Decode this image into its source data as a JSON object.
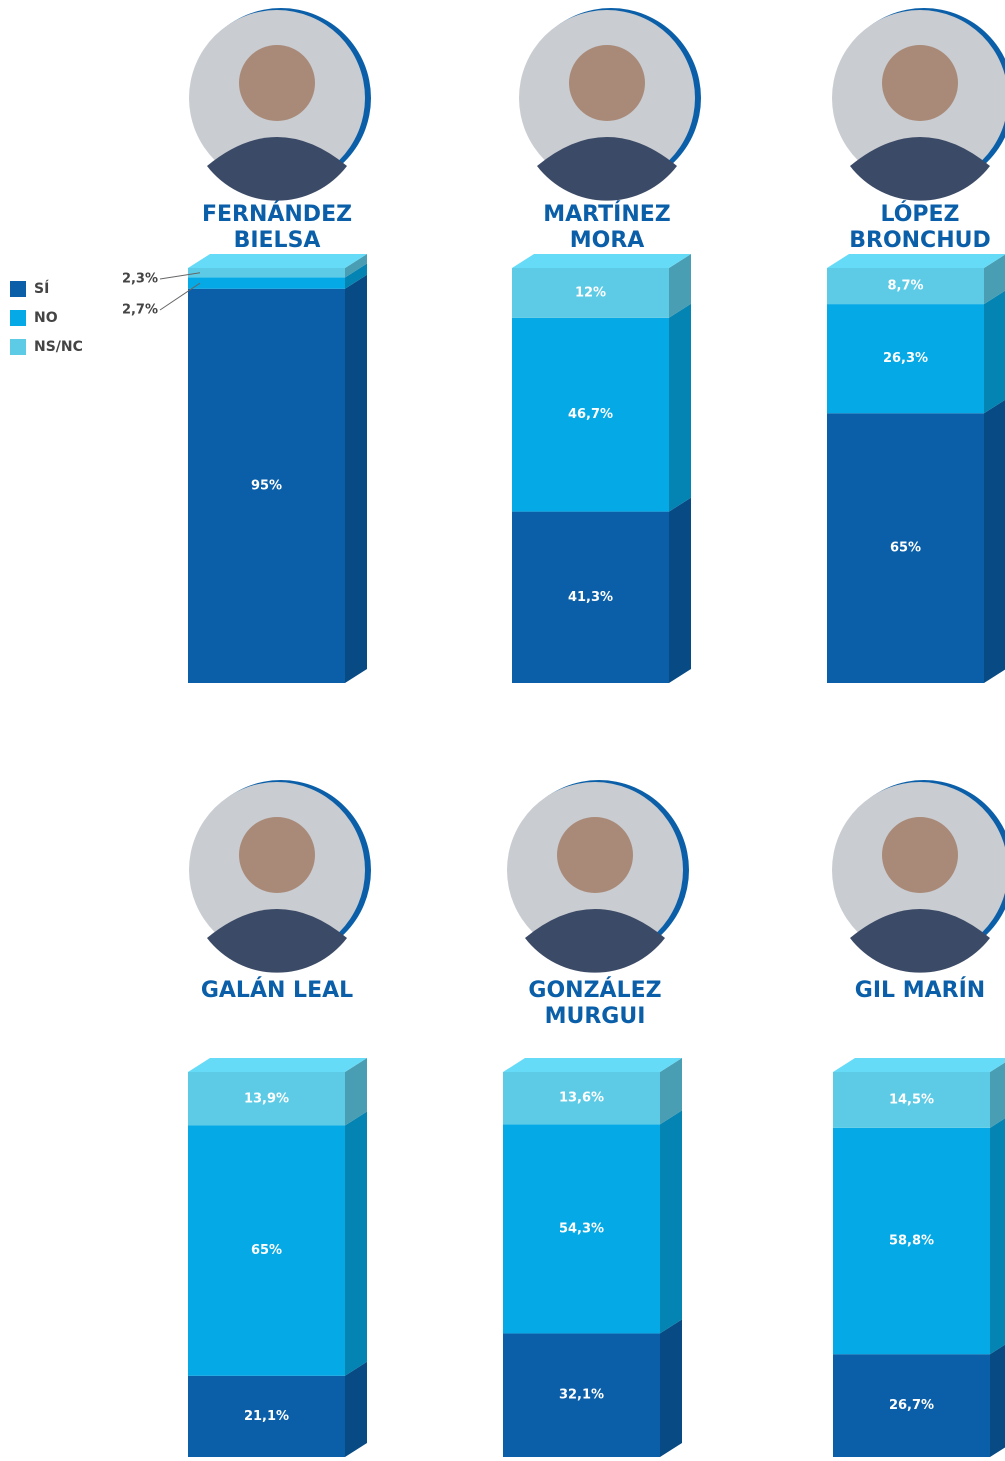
{
  "chart_data": {
    "type": "stacked-bar-3d",
    "categories": [
      "FERNÁNDEZ BIELSA",
      "MARTÍNEZ MORA",
      "LÓPEZ BRONCHUD",
      "GALÁN LEAL",
      "GONZÁLEZ MURGUI",
      "GIL MARÍN"
    ],
    "series": [
      {
        "name": "SÍ",
        "color": "#0a5fa8",
        "values": [
          95,
          41.3,
          65,
          21.1,
          32.1,
          26.7
        ],
        "value_labels": [
          "95%",
          "41,3%",
          "65%",
          "21,1%",
          "32,1%",
          "26,7%"
        ]
      },
      {
        "name": "NO",
        "color": "#04a9e6",
        "values": [
          2.7,
          46.7,
          26.3,
          65,
          54.3,
          58.8
        ],
        "value_labels": [
          "2,7%",
          "46,7%",
          "26,3%",
          "65%",
          "54,3%",
          "58,8%"
        ]
      },
      {
        "name": "NS/NC",
        "color": "#5ecbe6",
        "values": [
          2.3,
          12,
          8.7,
          13.9,
          13.6,
          14.5
        ],
        "value_labels": [
          "2,3%",
          "12%",
          "8,7%",
          "13,9%",
          "13,6%",
          "14,5%"
        ]
      }
    ]
  }
}
